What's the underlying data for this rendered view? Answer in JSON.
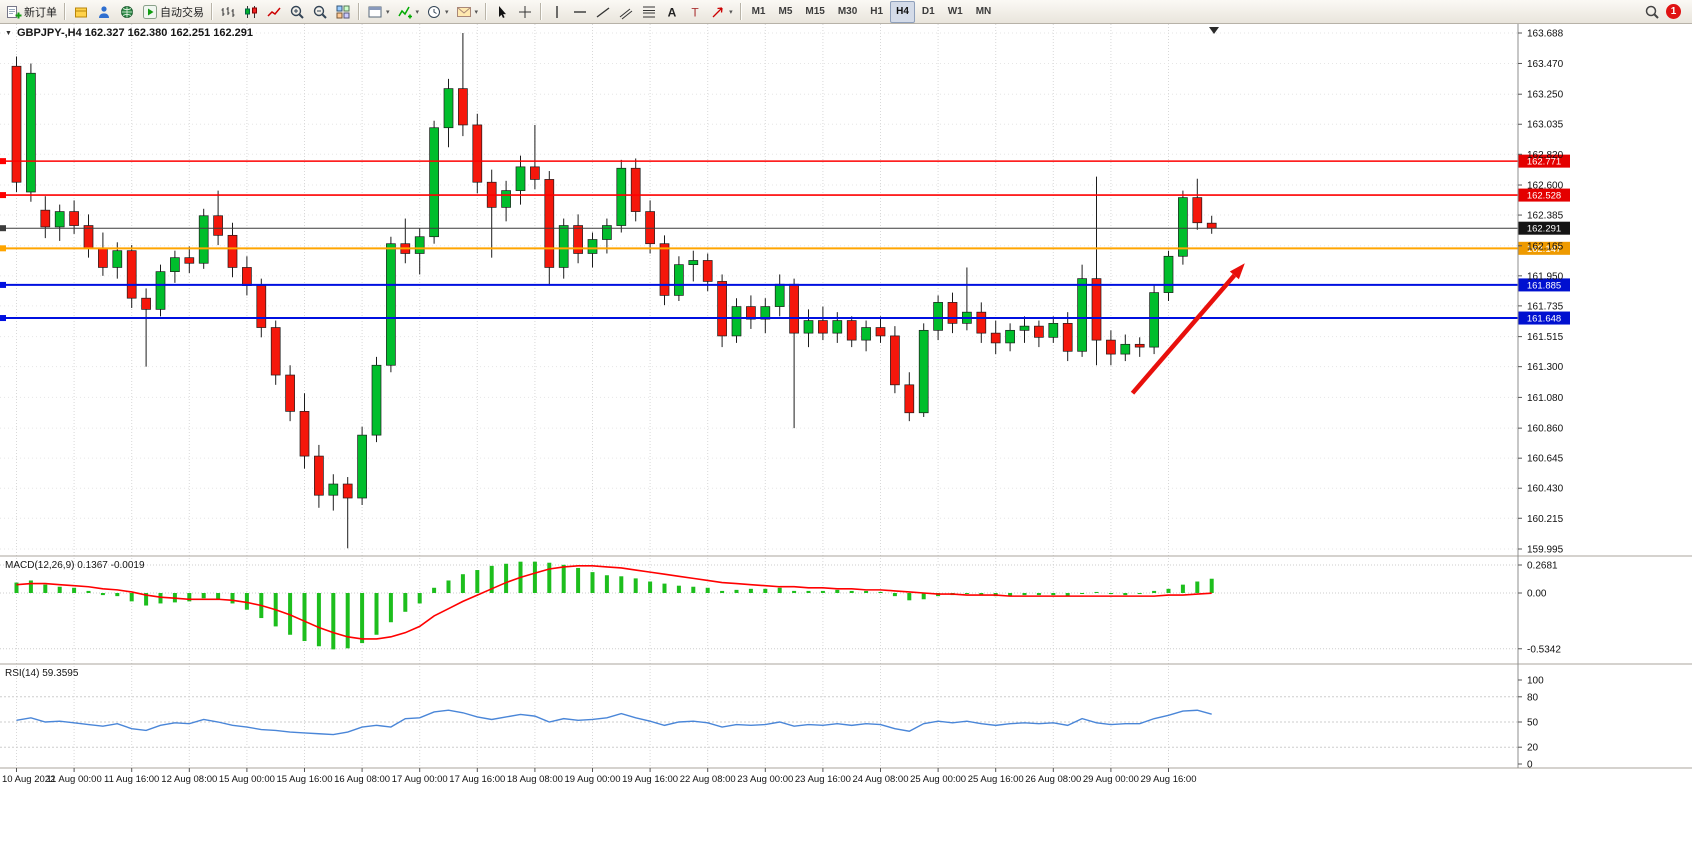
{
  "toolbar": {
    "badge": "1",
    "items": [
      {
        "kind": "button",
        "name": "new-order",
        "icon": "new-order",
        "label": "新订单"
      },
      {
        "kind": "sep"
      },
      {
        "kind": "button",
        "name": "market-watch",
        "icon": "cube"
      },
      {
        "kind": "button",
        "name": "data-window",
        "icon": "person"
      },
      {
        "kind": "button",
        "name": "history-center",
        "icon": "globe"
      },
      {
        "kind": "button",
        "name": "auto-trading",
        "icon": "play",
        "label": "自动交易"
      },
      {
        "kind": "sep"
      },
      {
        "kind": "button",
        "name": "chart-bars",
        "icon": "bars"
      },
      {
        "kind": "button",
        "name": "chart-candles",
        "icon": "candles"
      },
      {
        "kind": "button",
        "name": "chart-line",
        "icon": "line"
      },
      {
        "kind": "button",
        "name": "zoom-in",
        "icon": "zoom-in"
      },
      {
        "kind": "button",
        "name": "zoom-out",
        "icon": "zoom-out"
      },
      {
        "kind": "button",
        "name": "tile-windows",
        "icon": "tile"
      },
      {
        "kind": "sep"
      },
      {
        "kind": "button",
        "name": "new-chart",
        "icon": "window",
        "caret": true
      },
      {
        "kind": "button",
        "name": "indicators-list",
        "icon": "indicator",
        "caret": true
      },
      {
        "kind": "button",
        "name": "periods",
        "icon": "clock",
        "caret": true
      },
      {
        "kind": "button",
        "name": "templates",
        "icon": "mail",
        "caret": true
      },
      {
        "kind": "sep"
      },
      {
        "kind": "button",
        "name": "cursor",
        "icon": "cursor"
      },
      {
        "kind": "button",
        "name": "crosshair",
        "icon": "crosshair"
      },
      {
        "kind": "sep"
      },
      {
        "kind": "button",
        "name": "vertical-line",
        "icon": "vline"
      },
      {
        "kind": "button",
        "name": "horizontal-line",
        "icon": "hline"
      },
      {
        "kind": "button",
        "name": "trendline",
        "icon": "trend"
      },
      {
        "kind": "button",
        "name": "equidistant-channel",
        "icon": "channel"
      },
      {
        "kind": "button",
        "name": "fibonacci",
        "icon": "fibo"
      },
      {
        "kind": "button",
        "name": "text",
        "icon": "textA"
      },
      {
        "kind": "button",
        "name": "text-label",
        "icon": "textT"
      },
      {
        "kind": "button",
        "name": "arrows",
        "icon": "arrowobj",
        "caret": true
      },
      {
        "kind": "sep"
      },
      {
        "kind": "tf",
        "label": "M1"
      },
      {
        "kind": "tf",
        "label": "M5"
      },
      {
        "kind": "tf",
        "label": "M15"
      },
      {
        "kind": "tf",
        "label": "M30"
      },
      {
        "kind": "tf",
        "label": "H1"
      },
      {
        "kind": "tf",
        "label": "H4",
        "active": true
      },
      {
        "kind": "tf",
        "label": "D1"
      },
      {
        "kind": "tf",
        "label": "W1"
      },
      {
        "kind": "tf",
        "label": "MN"
      },
      {
        "kind": "spacer"
      },
      {
        "kind": "button",
        "name": "search",
        "icon": "search"
      },
      {
        "kind": "badge"
      }
    ]
  },
  "chart": {
    "title": "GBPJPY-,H4 162.327 162.380 162.251 162.291",
    "symbol": "GBPJPY-",
    "timeframe": "H4",
    "ohlc_display": {
      "open": "162.327",
      "high": "162.380",
      "low": "162.251",
      "close": "162.291"
    }
  },
  "indicators": {
    "macd": {
      "label": "MACD(12,26,9) 0.1367 -0.0019"
    },
    "rsi": {
      "label": "RSI(14) 59.3595"
    }
  },
  "chart_data": [
    {
      "type": "candlestick",
      "symbol": "GBPJPY-",
      "timeframe": "H4",
      "colors": {
        "up": "#00BE2C",
        "down": "#F5170B"
      },
      "x_label_step": 4,
      "x_labels": [
        "10 Aug 2022",
        "11 Aug 00:00",
        "11 Aug 16:00",
        "12 Aug 08:00",
        "15 Aug 00:00",
        "15 Aug 16:00",
        "16 Aug 08:00",
        "17 Aug 00:00",
        "17 Aug 16:00",
        "18 Aug 08:00",
        "19 Aug 00:00",
        "19 Aug 16:00",
        "22 Aug 08:00",
        "23 Aug 00:00",
        "23 Aug 16:00",
        "24 Aug 08:00",
        "25 Aug 00:00",
        "25 Aug 16:00",
        "26 Aug 08:00",
        "29 Aug 00:00",
        "29 Aug 16:00"
      ],
      "y_ticks": [
        "163.688",
        "163.470",
        "163.250",
        "163.035",
        "162.820",
        "162.600",
        "162.385",
        "162.165",
        "161.950",
        "161.735",
        "161.515",
        "161.300",
        "161.080",
        "160.860",
        "160.645",
        "160.430",
        "160.215",
        "159.995"
      ],
      "ylim": [
        159.995,
        163.688
      ],
      "ohlc": [
        [
          163.45,
          163.52,
          162.55,
          162.62
        ],
        [
          162.55,
          163.47,
          162.48,
          163.4
        ],
        [
          162.42,
          162.52,
          162.22,
          162.3
        ],
        [
          162.3,
          162.46,
          162.2,
          162.41
        ],
        [
          162.41,
          162.49,
          162.25,
          162.31
        ],
        [
          162.31,
          162.39,
          162.08,
          162.15
        ],
        [
          162.15,
          162.26,
          161.95,
          162.01
        ],
        [
          162.01,
          162.19,
          161.93,
          162.13
        ],
        [
          162.13,
          162.17,
          161.72,
          161.79
        ],
        [
          161.79,
          161.86,
          161.3,
          161.71
        ],
        [
          161.71,
          162.03,
          161.66,
          161.98
        ],
        [
          161.98,
          162.13,
          161.9,
          162.08
        ],
        [
          162.08,
          162.16,
          161.97,
          162.04
        ],
        [
          162.04,
          162.43,
          162.0,
          162.38
        ],
        [
          162.38,
          162.56,
          162.17,
          162.24
        ],
        [
          162.24,
          162.33,
          161.94,
          162.01
        ],
        [
          162.01,
          162.09,
          161.81,
          161.88
        ],
        [
          161.88,
          161.93,
          161.51,
          161.58
        ],
        [
          161.58,
          161.63,
          161.17,
          161.24
        ],
        [
          161.24,
          161.31,
          160.91,
          160.98
        ],
        [
          160.98,
          161.11,
          160.57,
          160.66
        ],
        [
          160.66,
          160.74,
          160.29,
          160.38
        ],
        [
          160.38,
          160.53,
          160.27,
          160.46
        ],
        [
          160.46,
          160.51,
          160.0,
          160.36
        ],
        [
          160.36,
          160.87,
          160.31,
          160.81
        ],
        [
          160.81,
          161.37,
          160.76,
          161.31
        ],
        [
          161.31,
          162.23,
          161.26,
          162.18
        ],
        [
          162.18,
          162.36,
          162.04,
          162.11
        ],
        [
          162.11,
          162.29,
          161.96,
          162.23
        ],
        [
          162.23,
          163.06,
          162.18,
          163.01
        ],
        [
          163.01,
          163.36,
          162.87,
          163.29
        ],
        [
          163.29,
          163.688,
          162.95,
          163.03
        ],
        [
          163.03,
          163.11,
          162.54,
          162.62
        ],
        [
          162.62,
          162.71,
          162.08,
          162.44
        ],
        [
          162.44,
          162.63,
          162.34,
          162.56
        ],
        [
          162.56,
          162.81,
          162.46,
          162.73
        ],
        [
          162.73,
          163.03,
          162.57,
          162.64
        ],
        [
          162.64,
          162.7,
          161.88,
          162.01
        ],
        [
          162.01,
          162.36,
          161.93,
          162.31
        ],
        [
          162.31,
          162.39,
          162.04,
          162.11
        ],
        [
          162.11,
          162.26,
          162.01,
          162.21
        ],
        [
          162.21,
          162.36,
          162.11,
          162.31
        ],
        [
          162.31,
          162.78,
          162.26,
          162.72
        ],
        [
          162.72,
          162.79,
          162.34,
          162.41
        ],
        [
          162.41,
          162.49,
          162.11,
          162.18
        ],
        [
          162.18,
          162.24,
          161.74,
          161.81
        ],
        [
          161.81,
          162.09,
          161.77,
          162.03
        ],
        [
          162.03,
          162.13,
          161.91,
          162.06
        ],
        [
          162.06,
          162.11,
          161.84,
          161.91
        ],
        [
          161.91,
          161.96,
          161.44,
          161.52
        ],
        [
          161.52,
          161.79,
          161.47,
          161.73
        ],
        [
          161.73,
          161.81,
          161.57,
          161.64
        ],
        [
          161.64,
          161.79,
          161.54,
          161.73
        ],
        [
          161.73,
          161.96,
          161.66,
          161.89
        ],
        [
          161.89,
          161.93,
          160.86,
          161.54
        ],
        [
          161.54,
          161.71,
          161.44,
          161.63
        ],
        [
          161.63,
          161.73,
          161.49,
          161.54
        ],
        [
          161.54,
          161.69,
          161.47,
          161.63
        ],
        [
          161.63,
          161.66,
          161.44,
          161.49
        ],
        [
          161.49,
          161.63,
          161.41,
          161.58
        ],
        [
          161.58,
          161.66,
          161.47,
          161.52
        ],
        [
          161.52,
          161.59,
          161.11,
          161.17
        ],
        [
          161.17,
          161.26,
          160.91,
          160.97
        ],
        [
          160.97,
          161.61,
          160.94,
          161.56
        ],
        [
          161.56,
          161.81,
          161.49,
          161.76
        ],
        [
          161.76,
          161.83,
          161.54,
          161.61
        ],
        [
          161.61,
          162.01,
          161.56,
          161.69
        ],
        [
          161.69,
          161.76,
          161.47,
          161.54
        ],
        [
          161.54,
          161.63,
          161.39,
          161.47
        ],
        [
          161.47,
          161.61,
          161.41,
          161.56
        ],
        [
          161.56,
          161.66,
          161.47,
          161.59
        ],
        [
          161.59,
          161.63,
          161.44,
          161.51
        ],
        [
          161.51,
          161.66,
          161.47,
          161.61
        ],
        [
          161.61,
          161.69,
          161.34,
          161.41
        ],
        [
          161.41,
          162.03,
          161.37,
          161.93
        ],
        [
          161.93,
          162.66,
          161.31,
          161.49
        ],
        [
          161.49,
          161.56,
          161.31,
          161.39
        ],
        [
          161.39,
          161.53,
          161.34,
          161.46
        ],
        [
          161.46,
          161.51,
          161.37,
          161.44
        ],
        [
          161.44,
          161.89,
          161.39,
          161.83
        ],
        [
          161.83,
          162.13,
          161.77,
          162.09
        ],
        [
          162.09,
          162.56,
          162.03,
          162.51
        ],
        [
          162.51,
          162.645,
          162.28,
          162.33
        ],
        [
          162.327,
          162.38,
          162.251,
          162.291
        ]
      ],
      "hlines": [
        {
          "price": 162.771,
          "label": "162.771",
          "color": "#FE0000",
          "tag": "#E40000",
          "width": 1.6
        },
        {
          "price": 162.528,
          "label": "162.528",
          "color": "#FE0000",
          "tag": "#E40000",
          "width": 1.6
        },
        {
          "price": 162.147,
          "label": "162.147",
          "color": "#FFA500",
          "tag": "#EE9A00",
          "width": 2
        },
        {
          "price": 161.885,
          "label": "161.885",
          "color": "#0010E0",
          "tag": "#0010D0",
          "width": 2
        },
        {
          "price": 161.648,
          "label": "161.648",
          "color": "#0010E0",
          "tag": "#0010D0",
          "width": 2
        },
        {
          "price": 162.291,
          "label": "162.291",
          "color": "#3c3c3c",
          "tag": "#141414",
          "width": 1,
          "current": true
        }
      ],
      "arrow": {
        "from": {
          "i": 77.5,
          "price": 161.11
        },
        "to": {
          "i": 85.3,
          "price": 162.04
        },
        "color": "#E8100C"
      }
    },
    {
      "type": "macd",
      "name": "MACD",
      "label": "MACD(12,26,9) 0.1367 -0.0019",
      "params": "12,26,9",
      "main_value": 0.1367,
      "signal_value": -0.0019,
      "colors": {
        "histogram": "#1DBE1D",
        "signal": "#FF0000"
      },
      "y_ticks": [
        "0.2681",
        "0.00",
        "-0.5342"
      ],
      "ylim": [
        -0.5342,
        0.2681
      ],
      "histogram": [
        0.1,
        0.12,
        0.08,
        0.06,
        0.05,
        0.02,
        -0.02,
        -0.03,
        -0.08,
        -0.12,
        -0.1,
        -0.09,
        -0.08,
        -0.05,
        -0.06,
        -0.1,
        -0.16,
        -0.24,
        -0.32,
        -0.4,
        -0.46,
        -0.51,
        -0.54,
        -0.53,
        -0.48,
        -0.4,
        -0.28,
        -0.18,
        -0.1,
        0.05,
        0.12,
        0.18,
        0.22,
        0.26,
        0.28,
        0.3,
        0.3,
        0.29,
        0.27,
        0.24,
        0.2,
        0.17,
        0.16,
        0.14,
        0.11,
        0.09,
        0.07,
        0.06,
        0.05,
        0.02,
        0.03,
        0.04,
        0.04,
        0.05,
        0.02,
        0.02,
        0.02,
        0.03,
        0.02,
        0.02,
        0.01,
        -0.03,
        -0.07,
        -0.06,
        -0.03,
        -0.02,
        -0.01,
        -0.02,
        -0.03,
        -0.03,
        -0.02,
        -0.02,
        -0.02,
        -0.03,
        0.0,
        0.01,
        -0.01,
        -0.02,
        -0.01,
        0.02,
        0.04,
        0.08,
        0.11,
        0.1367
      ],
      "signal": [
        0.08,
        0.09,
        0.09,
        0.08,
        0.07,
        0.06,
        0.04,
        0.03,
        0.01,
        -0.02,
        -0.04,
        -0.05,
        -0.06,
        -0.06,
        -0.06,
        -0.07,
        -0.09,
        -0.12,
        -0.16,
        -0.21,
        -0.27,
        -0.33,
        -0.38,
        -0.42,
        -0.44,
        -0.44,
        -0.42,
        -0.38,
        -0.32,
        -0.22,
        -0.15,
        -0.08,
        -0.02,
        0.04,
        0.1,
        0.15,
        0.19,
        0.23,
        0.25,
        0.26,
        0.26,
        0.25,
        0.24,
        0.22,
        0.2,
        0.18,
        0.16,
        0.14,
        0.12,
        0.1,
        0.09,
        0.08,
        0.07,
        0.06,
        0.06,
        0.05,
        0.05,
        0.04,
        0.04,
        0.03,
        0.03,
        0.02,
        0.01,
        0.0,
        -0.01,
        -0.01,
        -0.02,
        -0.02,
        -0.02,
        -0.03,
        -0.03,
        -0.03,
        -0.03,
        -0.03,
        -0.03,
        -0.03,
        -0.03,
        -0.03,
        -0.03,
        -0.03,
        -0.02,
        -0.02,
        -0.01,
        -0.002
      ]
    },
    {
      "type": "rsi",
      "name": "RSI",
      "label": "RSI(14) 59.3595",
      "period": 14,
      "value": 59.3595,
      "color": "#4A86D8",
      "levels": [
        80,
        50,
        20
      ],
      "y_ticks": [
        "100",
        "80",
        "50",
        "20",
        "0"
      ],
      "ylim": [
        0,
        100
      ],
      "values": [
        52,
        55,
        50,
        51,
        49,
        47,
        45,
        48,
        42,
        40,
        46,
        49,
        48,
        53,
        50,
        46,
        44,
        41,
        40,
        38,
        37,
        36,
        35,
        38,
        44,
        46,
        44,
        54,
        55,
        62,
        64,
        61,
        56,
        53,
        56,
        59,
        57,
        50,
        54,
        52,
        53,
        55,
        60,
        55,
        51,
        46,
        50,
        51,
        49,
        44,
        47,
        46,
        47,
        50,
        45,
        47,
        46,
        48,
        46,
        48,
        47,
        42,
        39,
        48,
        51,
        49,
        51,
        48,
        46,
        48,
        49,
        48,
        49,
        46,
        54,
        49,
        47,
        48,
        48,
        54,
        58,
        63,
        64,
        59.36
      ]
    }
  ]
}
